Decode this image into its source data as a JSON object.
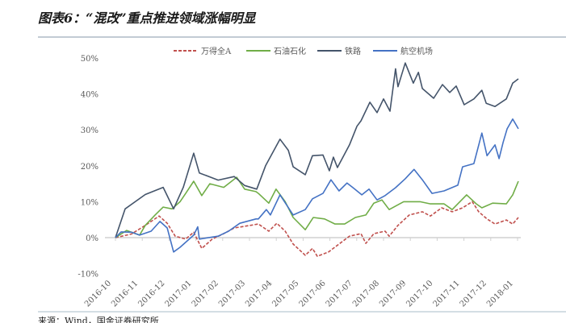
{
  "header": {
    "title": "图表6：“混改”重点推进领域涨幅明显"
  },
  "footer": {
    "source": "来源：Wind，国金证券研究所"
  },
  "chart_data": {
    "type": "line",
    "title": "图表6：“混改”重点推进领域涨幅明显",
    "xlabel": "",
    "ylabel": "",
    "x_unit": "months since 2016-10",
    "x_ticks": [
      "2016-10",
      "2016-11",
      "2016-12",
      "2017-01",
      "2017-02",
      "2017-03",
      "2017-04",
      "2017-05",
      "2017-06",
      "2017-07",
      "2017-08",
      "2017-09",
      "2017-10",
      "2017-11",
      "2017-12",
      "2018-01"
    ],
    "y_ticks": [
      "50%",
      "40%",
      "30%",
      "20%",
      "10%",
      "0%",
      "-10%"
    ],
    "y_tick_values": [
      50,
      40,
      30,
      20,
      10,
      0,
      -10
    ],
    "ylim": [
      -10,
      50
    ],
    "xlim": [
      0,
      15
    ],
    "grid": false,
    "legend_position": "top-center",
    "series": [
      {
        "name": "万得全A",
        "color": "#c0504d",
        "style": "dashed",
        "points": [
          [
            0,
            0
          ],
          [
            0.6,
            1
          ],
          [
            1.11,
            3.4
          ],
          [
            1.63,
            6
          ],
          [
            1.93,
            4
          ],
          [
            2.23,
            0.4
          ],
          [
            2.62,
            -0.4
          ],
          [
            2.92,
            1.5
          ],
          [
            3.22,
            -3
          ],
          [
            3.61,
            -0.4
          ],
          [
            4.04,
            1.1
          ],
          [
            4.43,
            2.7
          ],
          [
            5.03,
            3.4
          ],
          [
            5.33,
            3.8
          ],
          [
            5.72,
            1.8
          ],
          [
            6.02,
            4
          ],
          [
            6.33,
            1.8
          ],
          [
            6.63,
            -1.8
          ],
          [
            7.08,
            -4.9
          ],
          [
            7.35,
            -3
          ],
          [
            7.53,
            -5.2
          ],
          [
            7.95,
            -4
          ],
          [
            8.34,
            -1.8
          ],
          [
            8.73,
            0.4
          ],
          [
            9.16,
            1.1
          ],
          [
            9.34,
            -1.6
          ],
          [
            9.64,
            1.1
          ],
          [
            10.06,
            1.8
          ],
          [
            10.21,
            0.4
          ],
          [
            10.54,
            3.4
          ],
          [
            10.96,
            6.3
          ],
          [
            11.45,
            7.2
          ],
          [
            11.75,
            6
          ],
          [
            12.17,
            8.3
          ],
          [
            12.56,
            7.2
          ],
          [
            12.95,
            8.3
          ],
          [
            13.31,
            10
          ],
          [
            13.55,
            7.2
          ],
          [
            13.86,
            5.2
          ],
          [
            14.16,
            3.8
          ],
          [
            14.58,
            4.9
          ],
          [
            14.82,
            3.8
          ],
          [
            15.03,
            5.6
          ]
        ]
      },
      {
        "name": "石油石化",
        "color": "#70ad47",
        "style": "solid",
        "points": [
          [
            0,
            0
          ],
          [
            0.42,
            2
          ],
          [
            0.9,
            0.7
          ],
          [
            1.11,
            3.4
          ],
          [
            1.48,
            6.3
          ],
          [
            1.78,
            8.5
          ],
          [
            2.11,
            8
          ],
          [
            2.41,
            10
          ],
          [
            2.62,
            12.3
          ],
          [
            2.92,
            15.7
          ],
          [
            3.22,
            11.7
          ],
          [
            3.52,
            15
          ],
          [
            4.04,
            14
          ],
          [
            4.52,
            16.8
          ],
          [
            4.82,
            13.5
          ],
          [
            5.24,
            12.8
          ],
          [
            5.33,
            12.3
          ],
          [
            5.72,
            9.6
          ],
          [
            5.99,
            13.5
          ],
          [
            6.33,
            10
          ],
          [
            6.63,
            5.6
          ],
          [
            7.08,
            2.2
          ],
          [
            7.38,
            5.6
          ],
          [
            7.8,
            5.2
          ],
          [
            8.19,
            3.8
          ],
          [
            8.55,
            3.8
          ],
          [
            8.95,
            5.6
          ],
          [
            9.34,
            6.3
          ],
          [
            9.64,
            9.6
          ],
          [
            9.94,
            10.5
          ],
          [
            10.21,
            7.8
          ],
          [
            10.75,
            10
          ],
          [
            11.36,
            10
          ],
          [
            11.75,
            9.4
          ],
          [
            12.26,
            9.4
          ],
          [
            12.56,
            7.8
          ],
          [
            13.1,
            11.9
          ],
          [
            13.46,
            9.4
          ],
          [
            13.67,
            8.3
          ],
          [
            14.07,
            9.6
          ],
          [
            14.58,
            9.4
          ],
          [
            14.82,
            11.9
          ],
          [
            15.03,
            15.7
          ]
        ]
      },
      {
        "name": "铁路",
        "color": "#44546a",
        "style": "solid",
        "points": [
          [
            0,
            0
          ],
          [
            0.36,
            8
          ],
          [
            1.11,
            12
          ],
          [
            1.78,
            14
          ],
          [
            2.17,
            8
          ],
          [
            2.53,
            14
          ],
          [
            2.92,
            23.5
          ],
          [
            3.13,
            18
          ],
          [
            3.83,
            16
          ],
          [
            4.43,
            17
          ],
          [
            4.82,
            14.5
          ],
          [
            5.27,
            13.5
          ],
          [
            5.6,
            20
          ],
          [
            6.14,
            27.4
          ],
          [
            6.45,
            24.3
          ],
          [
            6.63,
            19.7
          ],
          [
            7.08,
            17.5
          ],
          [
            7.35,
            22.8
          ],
          [
            7.74,
            23
          ],
          [
            7.98,
            18.6
          ],
          [
            8.13,
            22.4
          ],
          [
            8.28,
            19.5
          ],
          [
            8.73,
            25.8
          ],
          [
            9.01,
            31
          ],
          [
            9.16,
            32.5
          ],
          [
            9.49,
            37.7
          ],
          [
            9.76,
            34.8
          ],
          [
            10.0,
            38.6
          ],
          [
            10.24,
            35.2
          ],
          [
            10.45,
            47
          ],
          [
            10.54,
            42
          ],
          [
            10.81,
            48.6
          ],
          [
            11.11,
            43
          ],
          [
            11.3,
            46
          ],
          [
            11.45,
            41.5
          ],
          [
            11.87,
            38.8
          ],
          [
            12.2,
            42.6
          ],
          [
            12.47,
            40.4
          ],
          [
            12.71,
            42.2
          ],
          [
            13.01,
            37
          ],
          [
            13.37,
            38.6
          ],
          [
            13.67,
            41
          ],
          [
            13.83,
            37.4
          ],
          [
            14.16,
            36.5
          ],
          [
            14.58,
            38.6
          ],
          [
            14.82,
            43
          ],
          [
            15.03,
            44.2
          ]
        ]
      },
      {
        "name": "航空机场",
        "color": "#4472c4",
        "style": "solid",
        "points": [
          [
            0,
            0
          ],
          [
            0.21,
            1.6
          ],
          [
            0.6,
            1.5
          ],
          [
            0.9,
            0.7
          ],
          [
            1.33,
            1.8
          ],
          [
            1.66,
            4.5
          ],
          [
            1.93,
            2.7
          ],
          [
            2.17,
            -4
          ],
          [
            2.41,
            -2.7
          ],
          [
            2.92,
            0.7
          ],
          [
            3.07,
            3
          ],
          [
            3.13,
            -0.4
          ],
          [
            3.83,
            0.4
          ],
          [
            4.22,
            1.8
          ],
          [
            4.64,
            4
          ],
          [
            5.24,
            5.2
          ],
          [
            5.33,
            5.2
          ],
          [
            5.63,
            7.8
          ],
          [
            5.78,
            6.3
          ],
          [
            6.14,
            11.9
          ],
          [
            6.63,
            6.3
          ],
          [
            7.08,
            7.8
          ],
          [
            7.35,
            10.8
          ],
          [
            7.74,
            12.3
          ],
          [
            8.04,
            16.1
          ],
          [
            8.34,
            13
          ],
          [
            8.64,
            15.2
          ],
          [
            8.86,
            13.9
          ],
          [
            9.19,
            11.9
          ],
          [
            9.46,
            13.5
          ],
          [
            9.76,
            10.5
          ],
          [
            10.06,
            11.7
          ],
          [
            10.45,
            13.9
          ],
          [
            10.81,
            16.4
          ],
          [
            11.14,
            19
          ],
          [
            11.45,
            16.1
          ],
          [
            11.81,
            12.3
          ],
          [
            12.26,
            13
          ],
          [
            12.77,
            14.6
          ],
          [
            12.95,
            19.7
          ],
          [
            13.37,
            20.6
          ],
          [
            13.67,
            29.1
          ],
          [
            13.86,
            22.8
          ],
          [
            14.16,
            25.8
          ],
          [
            14.31,
            22
          ],
          [
            14.46,
            26.5
          ],
          [
            14.61,
            30.3
          ],
          [
            14.82,
            33
          ],
          [
            15.03,
            30.3
          ]
        ]
      }
    ]
  }
}
